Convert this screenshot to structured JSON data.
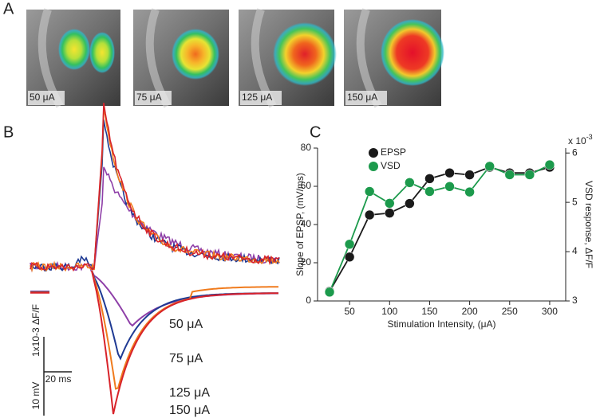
{
  "panels": {
    "a": {
      "label": "A",
      "images": [
        {
          "label": "50 μA",
          "color": "#8e3fa8"
        },
        {
          "label": "75 μA",
          "color": "#1f3a93"
        },
        {
          "label": "125 μA",
          "color": "#f07b1d"
        },
        {
          "label": "150 μA",
          "color": "#d8232a"
        }
      ]
    },
    "b": {
      "label": "B",
      "trace_labels": [
        {
          "label": "50 μA",
          "color": "#8e3fa8"
        },
        {
          "label": "75 μA",
          "color": "#1f3a93"
        },
        {
          "label": "125 μA",
          "color": "#f07b1d"
        },
        {
          "label": "150 μA",
          "color": "#d8232a"
        }
      ],
      "scale_vsd": "1x10-3 ΔF/F",
      "scale_time": "20 ms",
      "scale_voltage": "10 mV"
    }
  },
  "chart_data": {
    "type": "line",
    "panel_label": "C",
    "x_label": "Stimulation Intensity, (μA)",
    "y_label": "Slope of EPSP, (mV/ms)",
    "y2_label": "VSD response, ΔF/F",
    "y2_multiplier": {
      "base": "x 10",
      "exponent": "-3"
    },
    "x": [
      25,
      50,
      75,
      100,
      125,
      150,
      175,
      200,
      225,
      250,
      275,
      300
    ],
    "xlim": [
      10,
      320
    ],
    "xticks": [
      50,
      100,
      150,
      200,
      250,
      300
    ],
    "ylim": [
      0,
      80
    ],
    "yticks": [
      0,
      20,
      40,
      60,
      80
    ],
    "y2lim": [
      3,
      6.1
    ],
    "y2ticks": [
      3,
      4,
      5,
      6
    ],
    "legend": "upper left",
    "series": [
      {
        "name": "EPSP",
        "color": "#1a1a1a",
        "values": [
          5,
          23,
          45,
          46,
          51,
          64,
          67,
          66,
          70,
          67,
          67,
          70
        ]
      },
      {
        "name": "VSD",
        "color": "#1c9a4c",
        "axis": "y2",
        "values": [
          3.18,
          4.15,
          5.22,
          4.98,
          5.4,
          5.22,
          5.32,
          5.21,
          5.73,
          5.56,
          5.56,
          5.76
        ]
      }
    ]
  }
}
